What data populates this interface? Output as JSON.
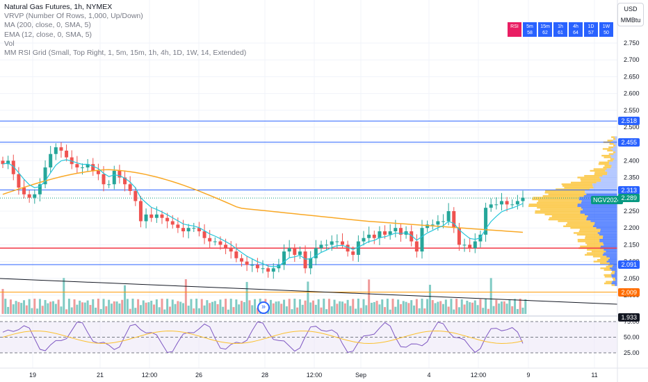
{
  "legend": {
    "title": "Natural Gas Futures, 1h, NYMEX",
    "lines": [
      "VRVP (Number Of Rows, 1,000, Up/Down)",
      "MA (200, close, 0, SMA, 5)",
      "EMA (12, close, 0, SMA, 5)",
      "Vol",
      "MM RSI Grid (Small, Top Right, 1, 5m, 15m, 1h, 4h, 1D, 1W, 14, Extended)"
    ]
  },
  "currency": "USD",
  "unit": "MMBtu",
  "rsi_grid": [
    {
      "label": "RSI",
      "value": "",
      "color": "#e91e63"
    },
    {
      "label": "5m",
      "value": "58",
      "color": "#2962ff"
    },
    {
      "label": "15m",
      "value": "62",
      "color": "#2962ff"
    },
    {
      "label": "1h",
      "value": "61",
      "color": "#2962ff"
    },
    {
      "label": "4h",
      "value": "64",
      "color": "#2962ff"
    },
    {
      "label": "1D",
      "value": "57",
      "color": "#2962ff"
    },
    {
      "label": "1W",
      "value": "50",
      "color": "#2962ff"
    }
  ],
  "price_tags": [
    {
      "text": "2.518",
      "color": "#2962ff",
      "price": 2.518
    },
    {
      "text": "2.455",
      "color": "#2962ff",
      "price": 2.455
    },
    {
      "text": "2.313",
      "color": "#2962ff",
      "price": 2.313
    },
    {
      "text": "2.289",
      "color": "#089981",
      "price": 2.289
    },
    {
      "text": "2.091",
      "color": "#2962ff",
      "price": 2.091
    },
    {
      "text": "2.009",
      "color": "#ff6d00",
      "price": 2.009
    },
    {
      "text": "1.933",
      "color": "#131722",
      "price": 1.933
    }
  ],
  "ngv_label": "NGV2024",
  "colors": {
    "up": "#26a69a",
    "down": "#ef5350",
    "ema": "#26c6da",
    "ma": "#f9a825",
    "hline": "#2962ff",
    "redline": "#f23645",
    "orangeline": "#ff9800"
  },
  "chart_data": {
    "type": "candlestick",
    "title": "Natural Gas Futures, 1h, NYMEX",
    "price_axis": {
      "ticks": [
        "2.750",
        "2.700",
        "2.650",
        "2.600",
        "2.550",
        "2.500",
        "2.450",
        "2.400",
        "2.350",
        "2.300",
        "2.250",
        "2.200",
        "2.150",
        "2.100",
        "2.050",
        "2.000"
      ],
      "range": [
        1.91,
        2.83
      ]
    },
    "time_axis": {
      "ticks": [
        "19",
        "21",
        "12:00",
        "26",
        "28",
        "12:00",
        "Sep",
        "4",
        "12:00",
        "9",
        "11"
      ]
    },
    "horizontal_levels": [
      2.518,
      2.455,
      2.313,
      2.14,
      2.091,
      2.009
    ],
    "close_path": [
      2.39,
      2.4,
      2.36,
      2.32,
      2.3,
      2.29,
      2.3,
      2.33,
      2.38,
      2.42,
      2.44,
      2.43,
      2.41,
      2.39,
      2.38,
      2.38,
      2.39,
      2.37,
      2.36,
      2.33,
      2.33,
      2.37,
      2.35,
      2.33,
      2.31,
      2.28,
      2.22,
      2.24,
      2.23,
      2.24,
      2.23,
      2.22,
      2.21,
      2.2,
      2.19,
      2.2,
      2.2,
      2.19,
      2.17,
      2.16,
      2.16,
      2.15,
      2.14,
      2.13,
      2.11,
      2.1,
      2.09,
      2.09,
      2.08,
      2.08,
      2.07,
      2.08,
      2.09,
      2.13,
      2.14,
      2.12,
      2.13,
      2.08,
      2.11,
      2.14,
      2.15,
      2.15,
      2.16,
      2.16,
      2.15,
      2.13,
      2.12,
      2.16,
      2.17,
      2.18,
      2.17,
      2.19,
      2.18,
      2.19,
      2.2,
      2.18,
      2.19,
      2.16,
      2.13,
      2.2,
      2.21,
      2.21,
      2.22,
      2.22,
      2.25,
      2.2,
      2.15,
      2.15,
      2.14,
      2.16,
      2.18,
      2.26,
      2.27,
      2.27,
      2.28,
      2.27,
      2.27,
      2.28,
      2.29
    ],
    "rsi_axis": {
      "ticks": [
        "75.00",
        "50.00",
        "25.00"
      ]
    },
    "series": [
      {
        "name": "MA (200, close, 0, SMA, 5)"
      },
      {
        "name": "EMA (12, close, 0, SMA, 5)"
      }
    ]
  }
}
